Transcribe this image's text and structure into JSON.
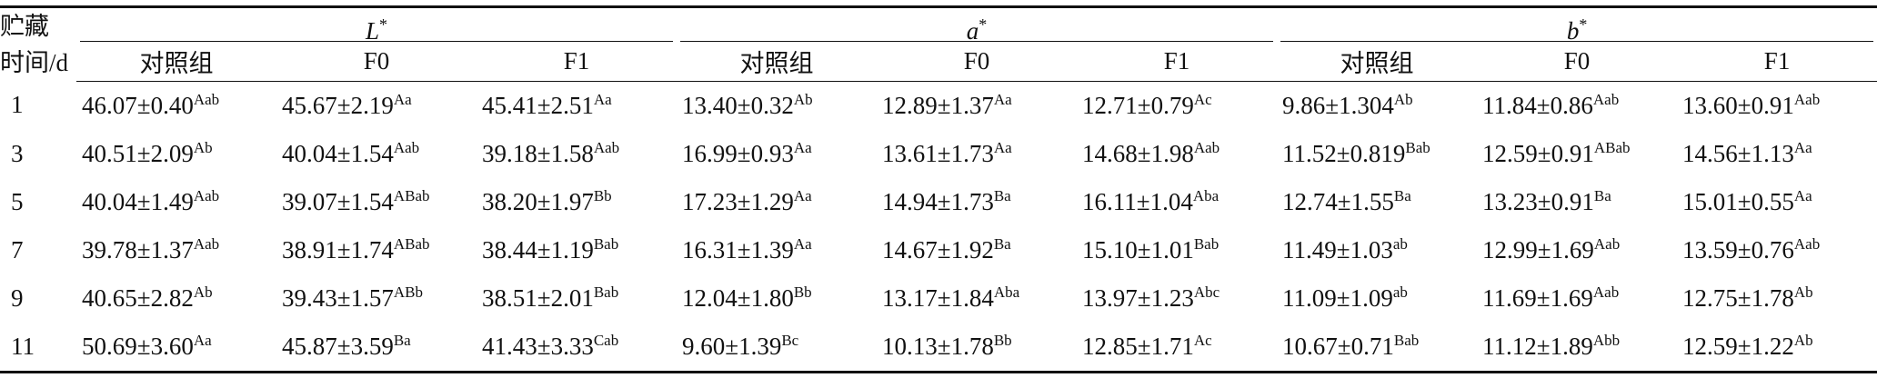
{
  "table": {
    "stub": {
      "line1": "贮藏",
      "line2": "时间/d"
    },
    "groups": [
      {
        "symbol": "L",
        "sup": "*"
      },
      {
        "symbol": "a",
        "sup": "*"
      },
      {
        "symbol": "b",
        "sup": "*"
      }
    ],
    "subheaders": [
      "对照组",
      "F0",
      "F1",
      "对照组",
      "F0",
      "F1",
      "对照组",
      "F0",
      "F1"
    ],
    "rows": [
      {
        "day": "1",
        "cells": [
          {
            "text": "46.07±0.40",
            "sup": "Aab"
          },
          {
            "text": "45.67±2.19",
            "sup": "Aa"
          },
          {
            "text": "45.41±2.51",
            "sup": "Aa"
          },
          {
            "text": "13.40±0.32",
            "sup": "Ab"
          },
          {
            "text": "12.89±1.37",
            "sup": "Aa"
          },
          {
            "text": "12.71±0.79",
            "sup": "Ac"
          },
          {
            "text": "9.86±1.304",
            "sup": "Ab"
          },
          {
            "text": "11.84±0.86",
            "sup": "Aab"
          },
          {
            "text": "13.60±0.91",
            "sup": "Aab"
          }
        ]
      },
      {
        "day": "3",
        "cells": [
          {
            "text": "40.51±2.09",
            "sup": "Ab"
          },
          {
            "text": "40.04±1.54",
            "sup": "Aab"
          },
          {
            "text": "39.18±1.58",
            "sup": "Aab"
          },
          {
            "text": "16.99±0.93",
            "sup": "Aa"
          },
          {
            "text": "13.61±1.73",
            "sup": "Aa"
          },
          {
            "text": "14.68±1.98",
            "sup": "Aab"
          },
          {
            "text": "11.52±0.819",
            "sup": "Bab"
          },
          {
            "text": "12.59±0.91",
            "sup": "ABab"
          },
          {
            "text": "14.56±1.13",
            "sup": "Aa"
          }
        ]
      },
      {
        "day": "5",
        "cells": [
          {
            "text": "40.04±1.49",
            "sup": "Aab"
          },
          {
            "text": "39.07±1.54",
            "sup": "ABab"
          },
          {
            "text": "38.20±1.97",
            "sup": "Bb"
          },
          {
            "text": "17.23±1.29",
            "sup": "Aa"
          },
          {
            "text": "14.94±1.73",
            "sup": "Ba"
          },
          {
            "text": "16.11±1.04",
            "sup": "Aba"
          },
          {
            "text": "12.74±1.55",
            "sup": "Ba"
          },
          {
            "text": "13.23±0.91",
            "sup": "Ba"
          },
          {
            "text": "15.01±0.55",
            "sup": "Aa"
          }
        ]
      },
      {
        "day": "7",
        "cells": [
          {
            "text": "39.78±1.37",
            "sup": "Aab"
          },
          {
            "text": "38.91±1.74",
            "sup": "ABab"
          },
          {
            "text": "38.44±1.19",
            "sup": "Bab"
          },
          {
            "text": "16.31±1.39",
            "sup": "Aa"
          },
          {
            "text": "14.67±1.92",
            "sup": "Ba"
          },
          {
            "text": "15.10±1.01",
            "sup": "Bab"
          },
          {
            "text": "11.49±1.03",
            "sup": "ab"
          },
          {
            "text": "12.99±1.69",
            "sup": "Aab"
          },
          {
            "text": "13.59±0.76",
            "sup": "Aab"
          }
        ]
      },
      {
        "day": "9",
        "cells": [
          {
            "text": "40.65±2.82",
            "sup": "Ab"
          },
          {
            "text": "39.43±1.57",
            "sup": "ABb"
          },
          {
            "text": "38.51±2.01",
            "sup": "Bab"
          },
          {
            "text": "12.04±1.80",
            "sup": "Bb"
          },
          {
            "text": "13.17±1.84",
            "sup": "Aba"
          },
          {
            "text": "13.97±1.23",
            "sup": "Abc"
          },
          {
            "text": "11.09±1.09",
            "sup": "ab"
          },
          {
            "text": "11.69±1.69",
            "sup": "Aab"
          },
          {
            "text": "12.75±1.78",
            "sup": "Ab"
          }
        ]
      },
      {
        "day": "11",
        "cells": [
          {
            "text": "50.69±3.60",
            "sup": "Aa"
          },
          {
            "text": "45.87±3.59",
            "sup": "Ba"
          },
          {
            "text": "41.43±3.33",
            "sup": "Cab"
          },
          {
            "text": "9.60±1.39",
            "sup": "Bc"
          },
          {
            "text": "10.13±1.78",
            "sup": "Bb"
          },
          {
            "text": "12.85±1.71",
            "sup": "Ac"
          },
          {
            "text": "10.67±0.71",
            "sup": "Bab"
          },
          {
            "text": "11.12±1.89",
            "sup": "Abb"
          },
          {
            "text": "12.59±1.22",
            "sup": "Ab"
          }
        ]
      }
    ]
  }
}
